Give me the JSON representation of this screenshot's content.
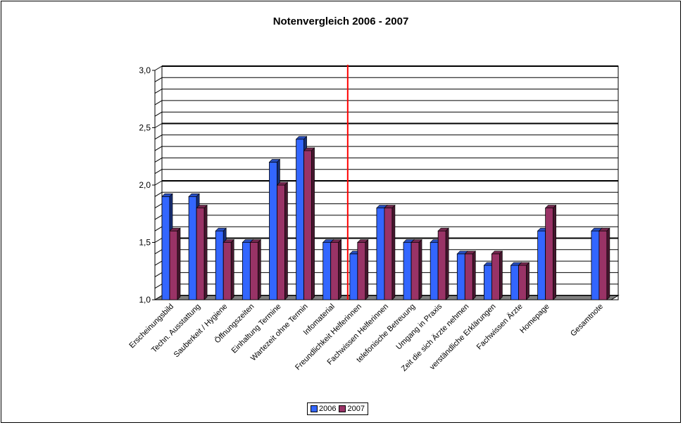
{
  "chart_data": {
    "type": "bar",
    "title": "Notenvergleich 2006 - 2007",
    "xlabel": "",
    "ylabel": "",
    "ylim": [
      1.0,
      3.0
    ],
    "yticks": [
      "1,0",
      "1,5",
      "2,0",
      "2,5",
      "3,0"
    ],
    "categories": [
      "Erscheinungsbild",
      "Techn. Ausstattung",
      "Sauberkeit / Hygiene",
      "Öffnungszeiten",
      "Einhaltung Termine",
      "Wartezeit ohne Termin",
      "Infomaterial",
      "Freundlichkeit Helferinnen",
      "Fachwissen Helferinnen",
      "telefonische Betreuung",
      "Umgang in Praxis",
      "Zeit die sich Ärzte nehmen",
      "verständliche Erklärungen",
      "Fachwissen Ärzte",
      "Homepage",
      "",
      "Gesamtnote"
    ],
    "series": [
      {
        "name": "2006",
        "color": "#3366ff",
        "values": [
          1.9,
          1.9,
          1.6,
          1.5,
          2.2,
          2.4,
          1.5,
          1.4,
          1.8,
          1.5,
          1.5,
          1.4,
          1.3,
          1.3,
          1.6,
          null,
          1.6
        ]
      },
      {
        "name": "2007",
        "color": "#993366",
        "values": [
          1.6,
          1.8,
          1.5,
          1.5,
          2.0,
          2.3,
          1.5,
          1.5,
          1.8,
          1.5,
          1.6,
          1.4,
          1.4,
          1.3,
          1.8,
          null,
          1.6
        ]
      }
    ],
    "divider_after_index": 6,
    "divider_color": "#ff0000",
    "grid": true,
    "legend_position": "bottom-center"
  }
}
